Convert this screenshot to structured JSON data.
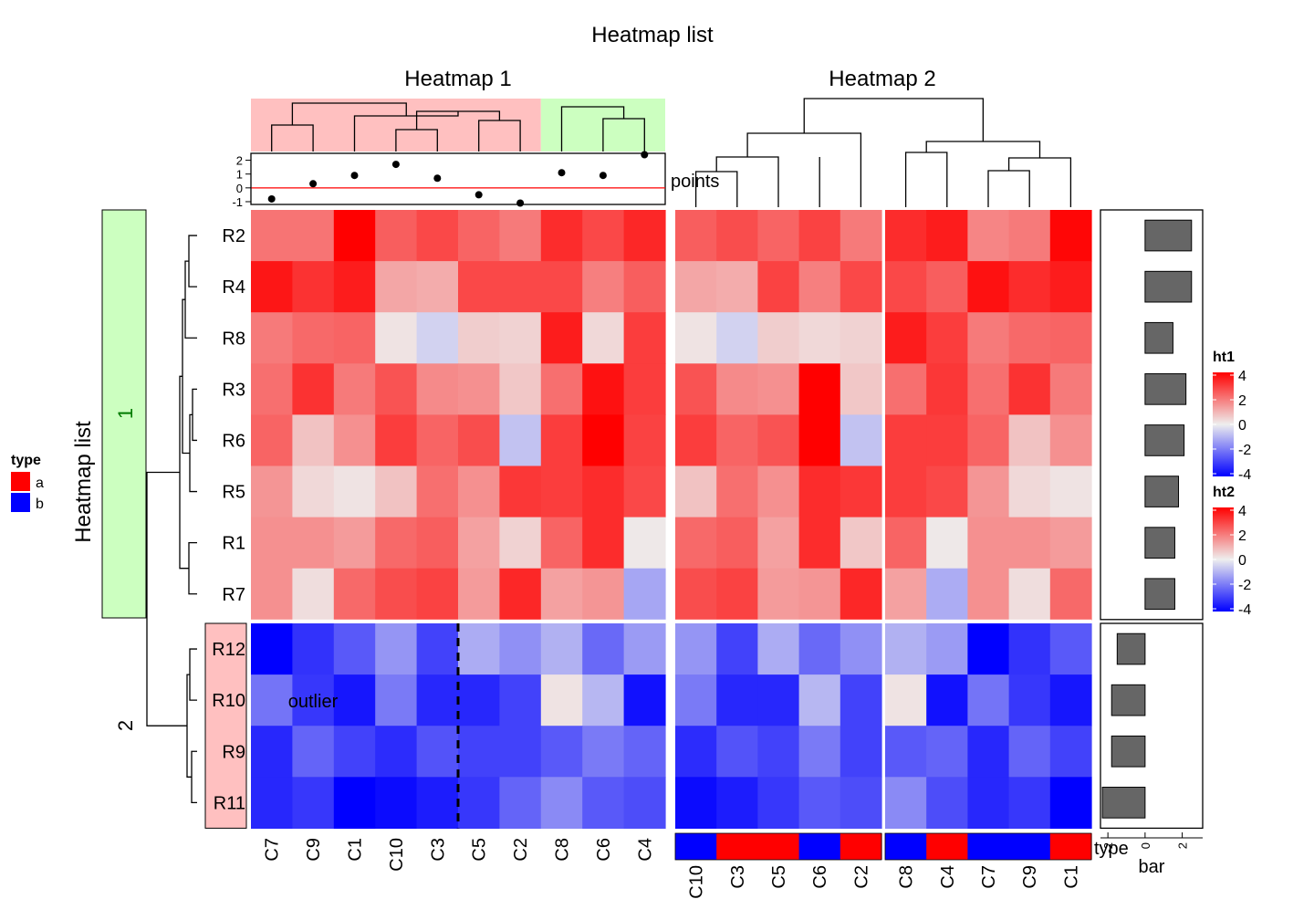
{
  "title": "Heatmap list",
  "row_title": "Heatmap list",
  "chart_data": {
    "type": "heatmap",
    "heatmap1": {
      "title": "Heatmap 1",
      "columns": [
        "C7",
        "C9",
        "C1",
        "C10",
        "C3",
        "C5",
        "C2",
        "C8",
        "C6",
        "C4"
      ],
      "column_groups": {
        "1": [
          "C7",
          "C9",
          "C1",
          "C10",
          "C3",
          "C5",
          "C2"
        ],
        "2": [
          "C8",
          "C6",
          "C4"
        ]
      },
      "column_group_colors": {
        "1": "#ffc0c0",
        "2": "#ccffc0"
      },
      "points": {
        "label": "points",
        "ticks": [
          2,
          1,
          0,
          -1
        ],
        "ylim": [
          -1.2,
          2.5
        ],
        "values": [
          -0.8,
          0.3,
          0.9,
          1.7,
          0.7,
          -0.5,
          -1.1,
          1.1,
          0.9,
          2.4
        ]
      },
      "annotation_text": "outlier",
      "split_after_column": "C3"
    },
    "heatmap2": {
      "title": "Heatmap 2",
      "column_slices": [
        [
          "C10",
          "C3",
          "C5",
          "C6",
          "C2"
        ],
        [
          "C8",
          "C4",
          "C7",
          "C9",
          "C1"
        ]
      ],
      "type_annotation": [
        "b",
        "a",
        "a",
        "b",
        "a",
        "b",
        "a",
        "b",
        "b",
        "a"
      ],
      "type_annotation_label": "type"
    },
    "rows": [
      "R2",
      "R4",
      "R8",
      "R3",
      "R6",
      "R5",
      "R1",
      "R7",
      "R12",
      "R10",
      "R9",
      "R11"
    ],
    "row_slices": [
      {
        "label": "1",
        "rows": [
          "R2",
          "R4",
          "R8",
          "R3",
          "R6",
          "R5",
          "R1",
          "R7"
        ],
        "color": "#ccffc0",
        "text_color": "#007a00"
      },
      {
        "label": "2",
        "rows": [
          "R12",
          "R10",
          "R9",
          "R11"
        ],
        "color": "#ffc0c0",
        "text_color": "#000000"
      }
    ],
    "values_ht1": [
      [
        2.2,
        2.2,
        4.3,
        2.6,
        3.0,
        2.5,
        2.1,
        3.5,
        3.0,
        3.6
      ],
      [
        3.9,
        3.4,
        3.8,
        1.3,
        1.2,
        3.0,
        3.0,
        3.0,
        2.0,
        2.6
      ],
      [
        2.1,
        2.4,
        2.5,
        0.2,
        -0.5,
        0.6,
        0.5,
        3.8,
        0.4,
        3.2
      ],
      [
        2.3,
        3.4,
        2.1,
        2.8,
        1.8,
        1.7,
        0.7,
        2.3,
        4.0,
        3.2
      ],
      [
        2.5,
        0.8,
        1.7,
        3.2,
        2.5,
        2.9,
        -0.8,
        3.2,
        4.3,
        3.1
      ],
      [
        1.6,
        0.4,
        0.2,
        0.8,
        2.3,
        1.7,
        3.3,
        3.2,
        3.5,
        3.0
      ],
      [
        1.7,
        1.7,
        1.5,
        2.4,
        2.6,
        1.4,
        0.5,
        2.5,
        3.5,
        0.1
      ],
      [
        1.7,
        0.3,
        2.4,
        2.9,
        3.1,
        1.5,
        3.6,
        1.4,
        1.6,
        -1.3
      ],
      [
        -4.3,
        -3.4,
        -2.7,
        -1.6,
        -3.1,
        -1.2,
        -1.7,
        -1.1,
        -2.4,
        -1.5
      ],
      [
        -2.2,
        -3.3,
        -3.9,
        -2.1,
        -3.6,
        -3.6,
        -3.1,
        0.2,
        -1.0,
        -4.0
      ],
      [
        -3.6,
        -2.5,
        -3.1,
        -3.5,
        -2.8,
        -3.1,
        -3.1,
        -2.7,
        -2.1,
        -2.5
      ],
      [
        -3.6,
        -3.3,
        -4.3,
        -4.1,
        -3.8,
        -3.3,
        -2.5,
        -1.8,
        -2.7,
        -2.9
      ]
    ],
    "values_ht2": [
      [
        2.6,
        2.9,
        2.5,
        3.1,
        2.1,
        3.5,
        3.8,
        1.9,
        2.1,
        4.2
      ],
      [
        1.3,
        1.2,
        3.1,
        2.0,
        3.0,
        3.0,
        2.6,
        4.0,
        3.5,
        3.8
      ],
      [
        0.2,
        -0.5,
        0.6,
        0.4,
        0.5,
        3.8,
        3.2,
        2.1,
        2.4,
        2.5
      ],
      [
        2.8,
        1.8,
        1.7,
        4.3,
        0.7,
        2.3,
        3.3,
        2.3,
        3.4,
        2.1
      ],
      [
        3.2,
        2.5,
        2.8,
        4.4,
        -0.8,
        3.2,
        3.2,
        2.5,
        0.8,
        1.7
      ],
      [
        0.8,
        2.3,
        1.7,
        3.5,
        3.3,
        3.2,
        3.0,
        1.6,
        0.4,
        0.2
      ],
      [
        2.4,
        2.6,
        1.4,
        3.5,
        0.7,
        2.5,
        0.1,
        1.7,
        1.7,
        1.5
      ],
      [
        2.9,
        3.1,
        1.5,
        1.6,
        3.6,
        1.4,
        -1.2,
        1.7,
        0.3,
        2.4
      ],
      [
        -1.6,
        -3.1,
        -1.2,
        -2.4,
        -1.7,
        -1.1,
        -1.5,
        -4.3,
        -3.4,
        -2.7
      ],
      [
        -2.1,
        -3.6,
        -3.6,
        -1.0,
        -3.1,
        0.2,
        -4.0,
        -2.2,
        -3.3,
        -3.9
      ],
      [
        -3.5,
        -2.8,
        -3.1,
        -2.1,
        -3.1,
        -2.7,
        -2.5,
        -3.6,
        -2.5,
        -3.1
      ],
      [
        -4.1,
        -3.8,
        -3.3,
        -2.7,
        -2.9,
        -1.8,
        -2.9,
        -3.6,
        -3.3,
        -4.3
      ]
    ],
    "row_bar": {
      "label": "bar",
      "ticks": [
        -2,
        0,
        2
      ],
      "xlim": [
        -2.4,
        3.1
      ],
      "values": [
        2.5,
        2.5,
        1.5,
        2.2,
        2.1,
        1.8,
        1.6,
        1.6,
        -1.5,
        -1.8,
        -1.8,
        -2.3
      ]
    },
    "legends": [
      {
        "title": "type",
        "entries": [
          {
            "label": "a",
            "color": "#ff0000"
          },
          {
            "label": "b",
            "color": "#0000ff"
          }
        ]
      },
      {
        "title": "ht1",
        "ticks": [
          4,
          2,
          0,
          -2,
          -4
        ],
        "colors": [
          "#0000ff",
          "#eeeeee",
          "#ff0000"
        ]
      },
      {
        "title": "ht2",
        "ticks": [
          4,
          2,
          0,
          -2,
          -4
        ],
        "colors": [
          "#0000ff",
          "#eeeeee",
          "#ff0000"
        ]
      }
    ]
  }
}
